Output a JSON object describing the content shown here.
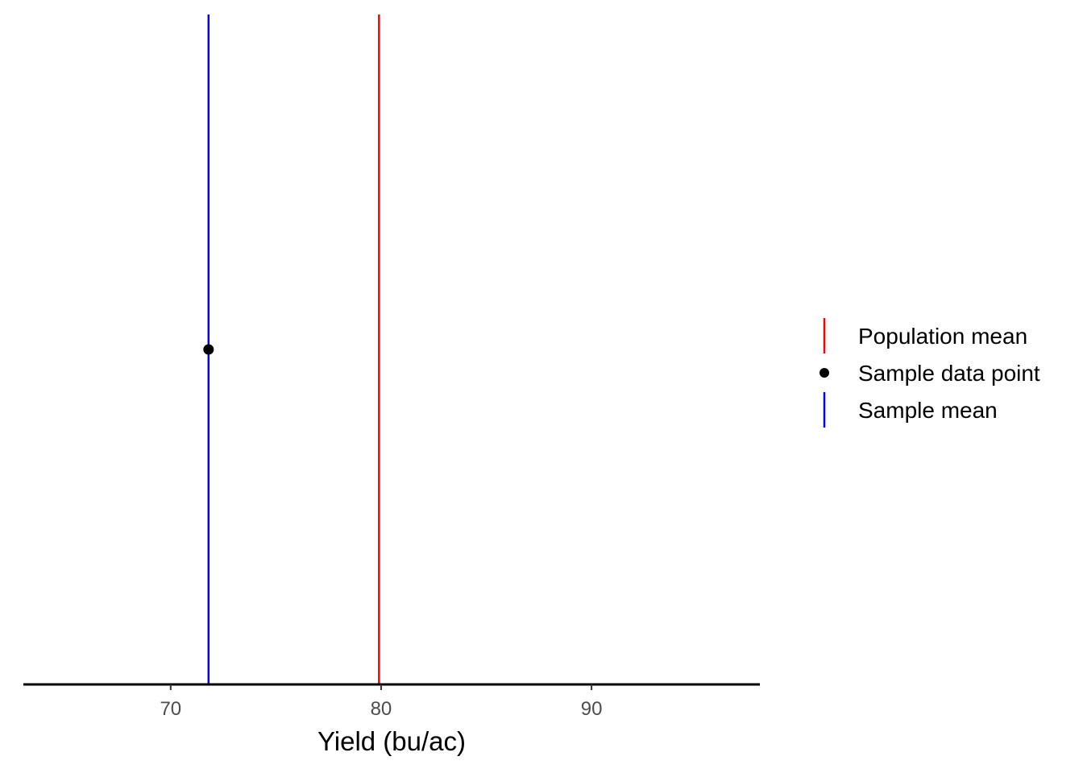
{
  "chart_data": {
    "type": "scatter",
    "xlabel": "Yield (bu/ac)",
    "ylabel": "",
    "xlim": [
      63,
      98
    ],
    "x_ticks": [
      70,
      80,
      90
    ],
    "x_tick_labels": [
      "70",
      "80",
      "90"
    ],
    "grid": false,
    "legend_position": "right",
    "series": [
      {
        "name": "Population mean",
        "kind": "vline",
        "x": 79.9,
        "color": "#FF0000"
      },
      {
        "name": "Sample data point",
        "kind": "point",
        "x": 71.8,
        "color": "#000000"
      },
      {
        "name": "Sample mean",
        "kind": "vline",
        "x": 71.8,
        "color": "#0000FF"
      }
    ]
  }
}
